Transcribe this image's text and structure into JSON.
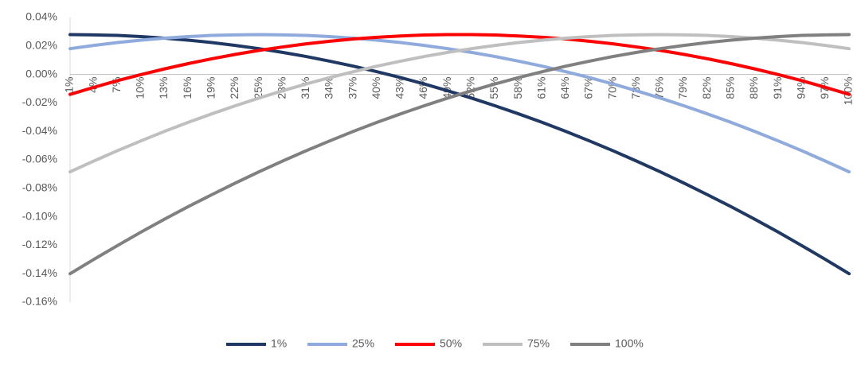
{
  "chart_data": {
    "type": "line",
    "categories": [
      "1%",
      "4%",
      "7%",
      "10%",
      "13%",
      "16%",
      "19%",
      "22%",
      "25%",
      "28%",
      "31%",
      "34%",
      "37%",
      "40%",
      "43%",
      "46%",
      "49%",
      "52%",
      "55%",
      "58%",
      "61%",
      "64%",
      "67%",
      "70%",
      "73%",
      "76%",
      "79%",
      "82%",
      "85%",
      "88%",
      "91%",
      "94%",
      "97%",
      "100%"
    ],
    "series": [
      {
        "name": "1%",
        "color": "#1f3864",
        "values": [
          0.028,
          0.0278,
          0.0274,
          0.0266,
          0.0255,
          0.0241,
          0.0224,
          0.0204,
          0.0181,
          0.0155,
          0.0126,
          0.0093,
          0.0058,
          0.0019,
          -0.0022,
          -0.0067,
          -0.0115,
          -0.0166,
          -0.022,
          -0.0277,
          -0.0337,
          -0.04,
          -0.0467,
          -0.0536,
          -0.0609,
          -0.0684,
          -0.0763,
          -0.0845,
          -0.0929,
          -0.1017,
          -0.1108,
          -0.1203,
          -0.13,
          -0.14
        ]
      },
      {
        "name": "25%",
        "color": "#8faadc",
        "values": [
          0.0181,
          0.0204,
          0.0224,
          0.0241,
          0.0255,
          0.0266,
          0.0274,
          0.0278,
          0.028,
          0.0278,
          0.0274,
          0.0266,
          0.0255,
          0.0241,
          0.0224,
          0.0204,
          0.0181,
          0.0155,
          0.0126,
          0.0093,
          0.0058,
          0.0019,
          -0.0022,
          -0.0067,
          -0.0115,
          -0.0166,
          -0.022,
          -0.0277,
          -0.0337,
          -0.04,
          -0.0467,
          -0.0536,
          -0.0609,
          -0.0684
        ]
      },
      {
        "name": "50%",
        "color": "#ff0000",
        "values": [
          -0.014,
          -0.0091,
          -0.0044,
          -0.0001,
          0.0039,
          0.0076,
          0.011,
          0.0141,
          0.0169,
          0.0193,
          0.0215,
          0.0233,
          0.0249,
          0.0261,
          0.027,
          0.0277,
          0.028,
          0.028,
          0.0277,
          0.027,
          0.0261,
          0.0249,
          0.0233,
          0.0215,
          0.0193,
          0.0169,
          0.0141,
          0.011,
          0.0076,
          0.0039,
          -0.0001,
          -0.0044,
          -0.0091,
          -0.014
        ]
      },
      {
        "name": "75%",
        "color": "#bfbfbf",
        "values": [
          -0.0684,
          -0.0609,
          -0.0536,
          -0.0467,
          -0.04,
          -0.0337,
          -0.0277,
          -0.022,
          -0.0166,
          -0.0115,
          -0.0067,
          -0.0022,
          0.0019,
          0.0058,
          0.0093,
          0.0126,
          0.0155,
          0.0181,
          0.0204,
          0.0224,
          0.0241,
          0.0255,
          0.0266,
          0.0274,
          0.0278,
          0.028,
          0.0278,
          0.0274,
          0.0266,
          0.0255,
          0.0241,
          0.0224,
          0.0204,
          0.0181
        ]
      },
      {
        "name": "100%",
        "color": "#808080",
        "values": [
          -0.14,
          -0.13,
          -0.1203,
          -0.1108,
          -0.1017,
          -0.0929,
          -0.0845,
          -0.0763,
          -0.0684,
          -0.0609,
          -0.0536,
          -0.0467,
          -0.04,
          -0.0337,
          -0.0277,
          -0.022,
          -0.0166,
          -0.0115,
          -0.0067,
          -0.0022,
          0.0019,
          0.0058,
          0.0093,
          0.0126,
          0.0155,
          0.0181,
          0.0204,
          0.0224,
          0.0241,
          0.0255,
          0.0266,
          0.0274,
          0.0278,
          0.028
        ]
      }
    ],
    "ylim": [
      -0.16,
      0.04
    ],
    "yticks": [
      {
        "value": -0.16,
        "label": "-0.16%"
      },
      {
        "value": -0.14,
        "label": "-0.14%"
      },
      {
        "value": -0.12,
        "label": "-0.12%"
      },
      {
        "value": -0.1,
        "label": "-0.10%"
      },
      {
        "value": -0.08,
        "label": "-0.08%"
      },
      {
        "value": -0.06,
        "label": "-0.06%"
      },
      {
        "value": -0.04,
        "label": "-0.04%"
      },
      {
        "value": -0.02,
        "label": "-0.02%"
      },
      {
        "value": 0,
        "label": "0.00%"
      },
      {
        "value": 0.02,
        "label": "0.02%"
      },
      {
        "value": 0.04,
        "label": "0.04%"
      }
    ],
    "grid": false,
    "legend": "bottom"
  }
}
